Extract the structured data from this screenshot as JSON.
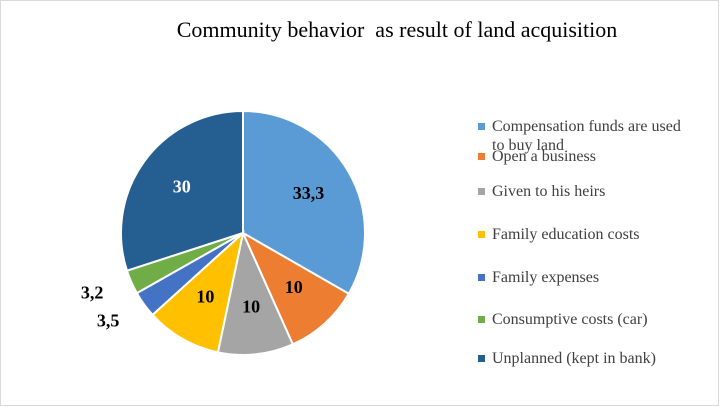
{
  "chart_data": {
    "type": "pie",
    "title": "Community behavior  as result of land acquisition",
    "categories": [
      "Compensation funds are used to buy land",
      "Open a business",
      "Given to his heirs",
      "Family education costs",
      "Family expenses",
      "Consumptive costs (car)",
      "Unplanned (kept in bank)"
    ],
    "values": [
      33.3,
      10,
      10,
      10,
      3.5,
      3.2,
      30
    ],
    "value_labels": [
      "33,3",
      "10",
      "10",
      "10",
      "3,5",
      "3,2",
      "30"
    ],
    "colors": [
      "#5b9bd5",
      "#ed7d31",
      "#a5a5a5",
      "#ffc000",
      "#4472c4",
      "#70ad47",
      "#255e91"
    ],
    "legend": "right"
  }
}
